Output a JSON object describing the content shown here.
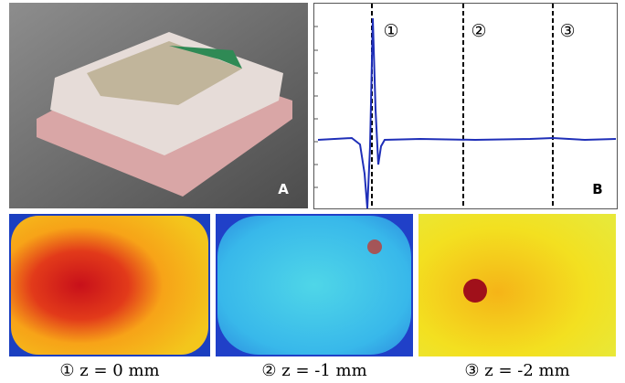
{
  "panel_a": {
    "label": "A"
  },
  "panel_b": {
    "label": "B",
    "markers": [
      "①",
      "②",
      "③"
    ]
  },
  "captions": [
    {
      "number": "①",
      "text": "z = 0 mm"
    },
    {
      "number": "②",
      "text": "z = -1 mm"
    },
    {
      "number": "③",
      "text": "z = -2 mm"
    }
  ]
}
